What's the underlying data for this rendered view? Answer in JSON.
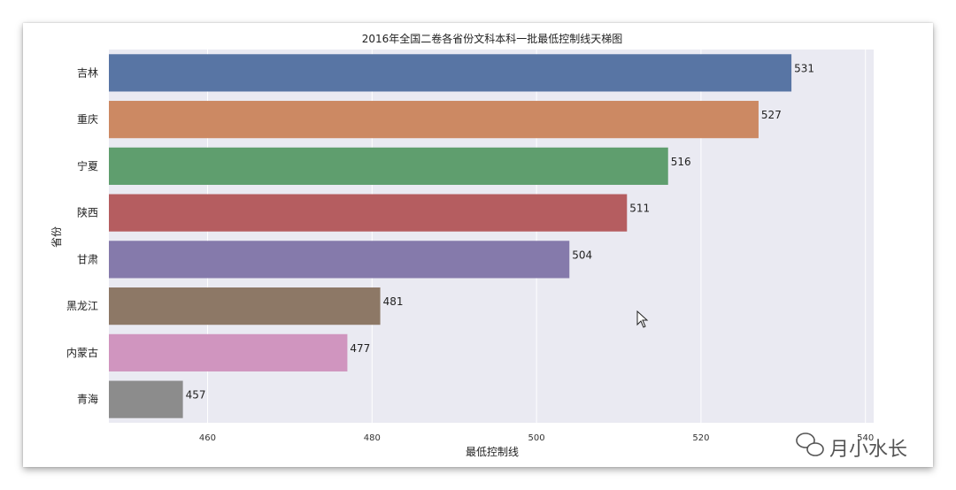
{
  "chart_data": {
    "type": "bar",
    "orientation": "horizontal",
    "title": "2016年全国二卷各省份文科本科一批最低控制线天梯图",
    "xlabel": "最低控制线",
    "ylabel": "省份",
    "categories": [
      "吉林",
      "重庆",
      "宁夏",
      "陕西",
      "甘肃",
      "黑龙江",
      "内蒙古",
      "青海"
    ],
    "values": [
      531,
      527,
      516,
      511,
      504,
      481,
      477,
      457
    ],
    "data_labels": [
      "531",
      "527",
      "516",
      "511",
      "504",
      "481",
      "477",
      "457"
    ],
    "xlim": [
      448,
      541
    ],
    "xticks": [
      460,
      480,
      500,
      520,
      540
    ],
    "xtick_labels": [
      "460",
      "480",
      "500",
      "520",
      "540"
    ],
    "colors": [
      "#5875a4",
      "#cc8963",
      "#5f9e6e",
      "#b55d60",
      "#857aab",
      "#8d7866",
      "#d095bf",
      "#8c8c8c"
    ],
    "background": "#eaeaf2",
    "grid": "x"
  },
  "watermark": {
    "text": "月小水长",
    "icon": "wechat-icon"
  }
}
